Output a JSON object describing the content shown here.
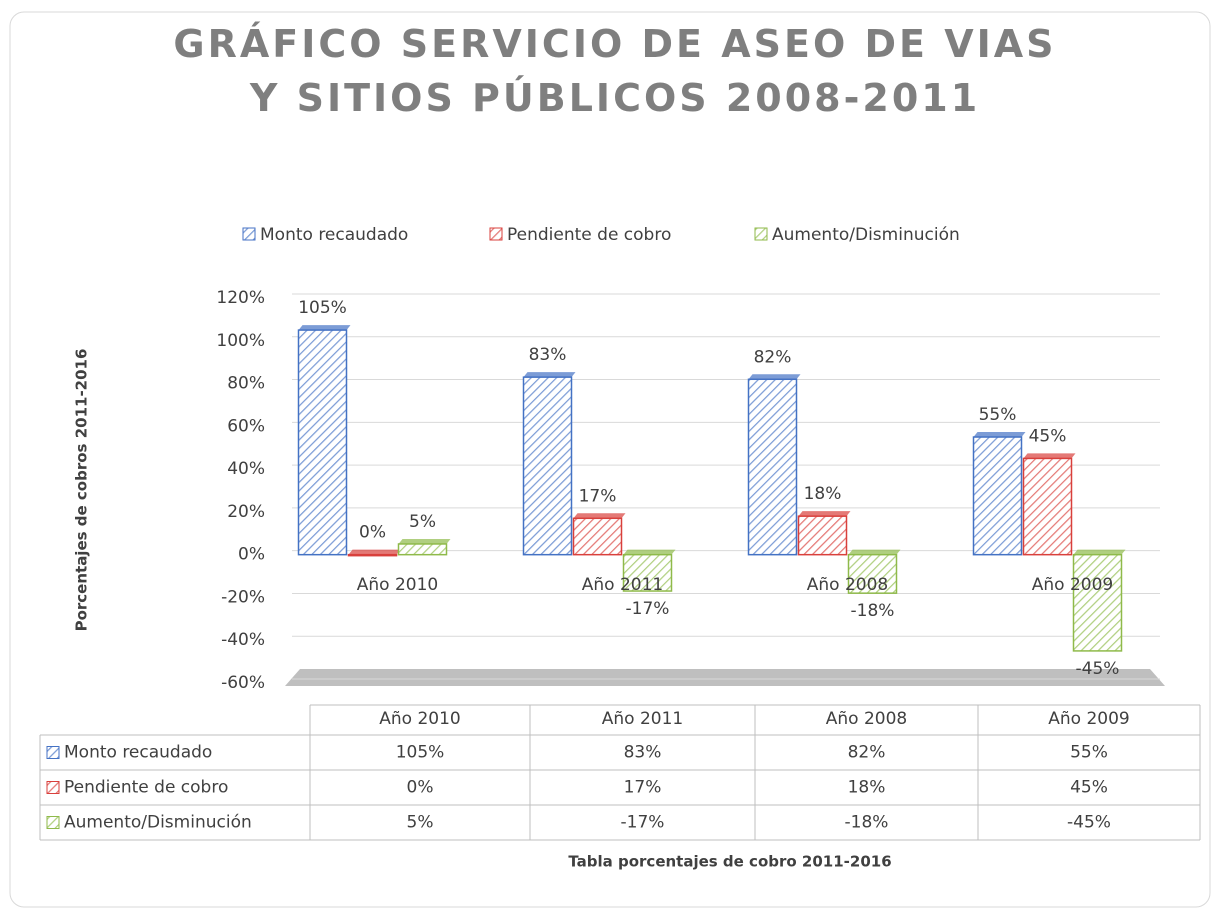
{
  "chart_data": {
    "type": "bar",
    "title": "GRÁFICO SERVICIO DE ASEO DE VIAS Y SITIOS PÚBLICOS 2008-2011",
    "xlabel": "Tabla porcentajes de cobro 2011-2016",
    "ylabel": "Porcentajes de cobros 2011-2016",
    "categories": [
      "Año 2010",
      "Año 2011",
      "Año 2008",
      "Año 2009"
    ],
    "series": [
      {
        "name": "Monto recaudado",
        "color": "#4472c4",
        "values": [
          105,
          83,
          82,
          55
        ],
        "value_labels": [
          "105%",
          "83%",
          "82%",
          "55%"
        ]
      },
      {
        "name": "Pendiente de cobro",
        "color": "#d9403c",
        "values": [
          0,
          17,
          18,
          45
        ],
        "value_labels": [
          "0%",
          "17%",
          "18%",
          "45%"
        ]
      },
      {
        "name": "Aumento/Disminución",
        "color": "#8fba4a",
        "values": [
          5,
          -17,
          -18,
          -45
        ],
        "value_labels": [
          "5%",
          "-17%",
          "-18%",
          "-45%"
        ]
      }
    ],
    "ylim": [
      -60,
      120
    ],
    "yticks": [
      {
        "value": -60,
        "label": "-60%"
      },
      {
        "value": -40,
        "label": "-40%"
      },
      {
        "value": -20,
        "label": "-20%"
      },
      {
        "value": 0,
        "label": "0%"
      },
      {
        "value": 20,
        "label": "20%"
      },
      {
        "value": 40,
        "label": "40%"
      },
      {
        "value": 60,
        "label": "60%"
      },
      {
        "value": 80,
        "label": "80%"
      },
      {
        "value": 100,
        "label": "100%"
      },
      {
        "value": 120,
        "label": "120%"
      }
    ],
    "grid": true,
    "legend": "top"
  }
}
